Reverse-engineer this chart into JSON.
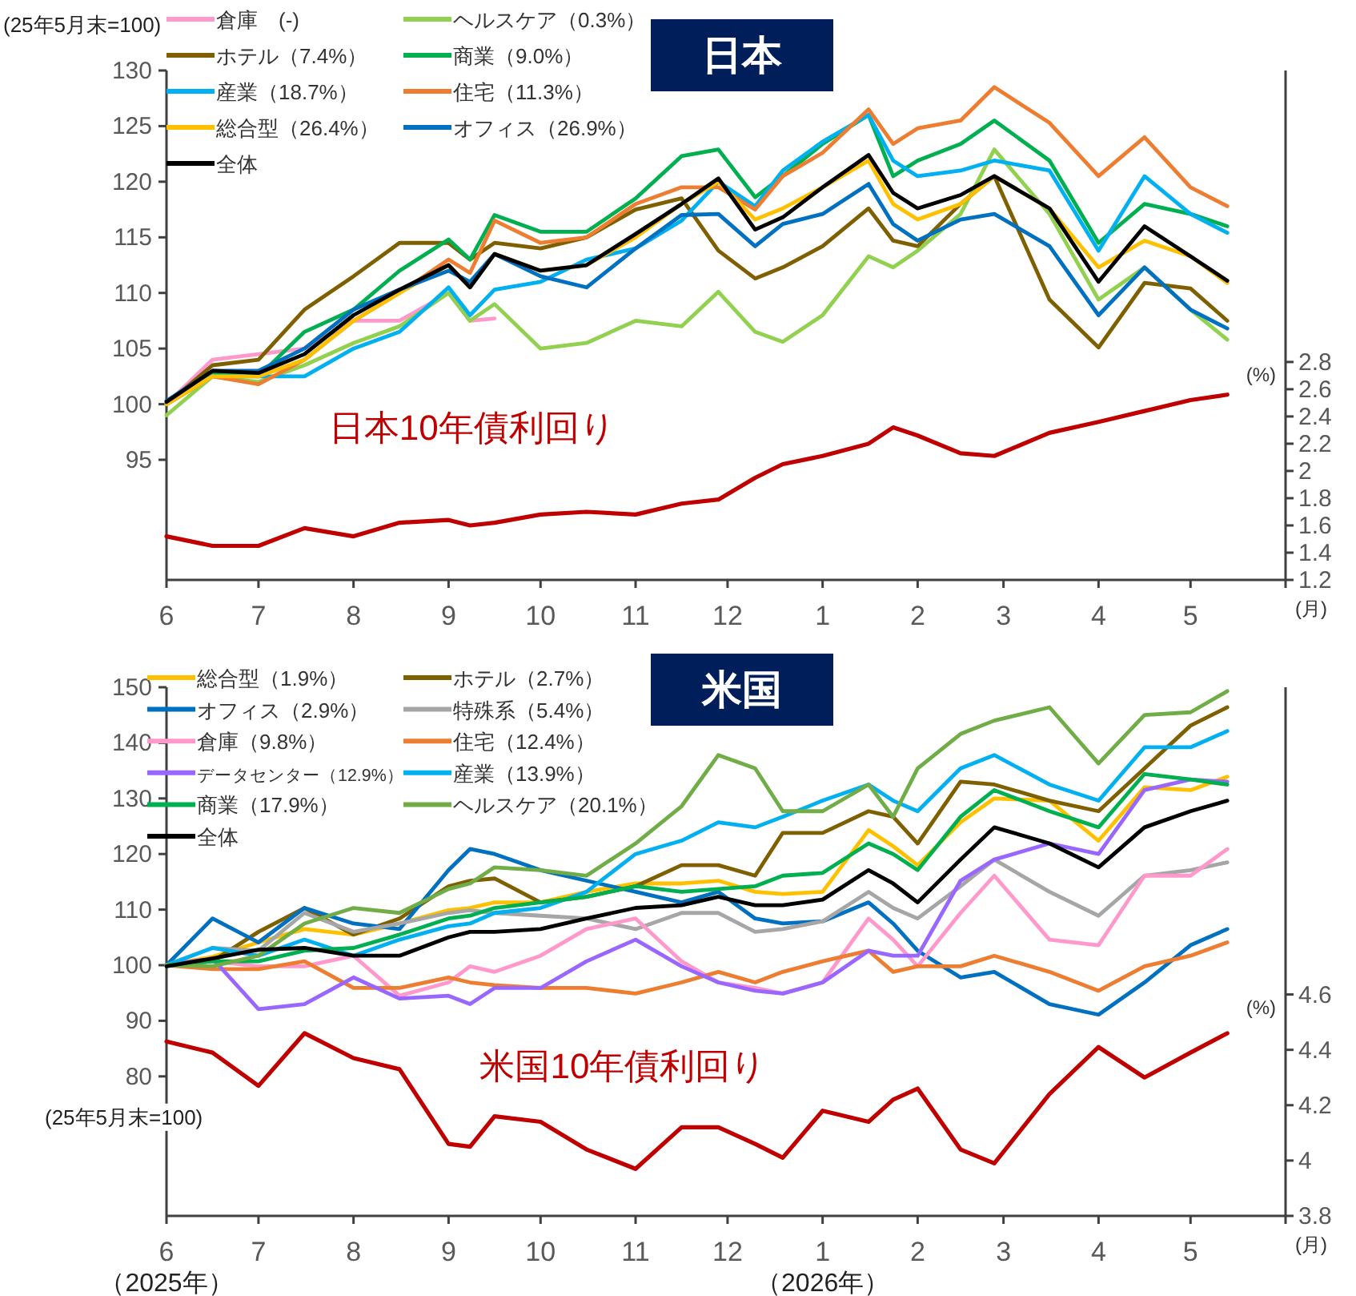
{
  "chart_data": [
    {
      "type": "line",
      "title": "日本",
      "ylabel": "(25年5月末=100)",
      "y2label": "(%)",
      "xlabel": "(月)",
      "legend": "top left",
      "grid": false,
      "marker": "none",
      "line_style": "solid",
      "x": [
        "2025-06-01",
        "2025-06-16",
        "2025-07-01",
        "2025-07-16",
        "2025-08-01",
        "2025-08-16",
        "2025-09-01",
        "2025-09-08",
        "2025-09-16",
        "2025-10-01",
        "2025-10-16",
        "2025-11-01",
        "2025-11-16",
        "2025-11-28",
        "2025-12-10",
        "2025-12-19",
        "2026-01-01",
        "2026-01-16",
        "2026-01-24",
        "2026-02-01",
        "2026-02-15",
        "2026-02-26",
        "2026-03-16",
        "2026-04-01",
        "2026-04-16",
        "2026-05-01",
        "2026-05-13"
      ],
      "xlim": [
        "2025-06-01",
        "2026-06-01"
      ],
      "xticks": [
        {
          "value": "2025-06",
          "label": "6"
        },
        {
          "value": "2025-07",
          "label": "7"
        },
        {
          "value": "2025-08",
          "label": "8"
        },
        {
          "value": "2025-09",
          "label": "9"
        },
        {
          "value": "2025-10",
          "label": "10"
        },
        {
          "value": "2025-11",
          "label": "11"
        },
        {
          "value": "2025-12",
          "label": "12"
        },
        {
          "value": "2026-01",
          "label": "1"
        },
        {
          "value": "2026-02",
          "label": "2"
        },
        {
          "value": "2026-03",
          "label": "3"
        },
        {
          "value": "2026-04",
          "label": "4"
        },
        {
          "value": "2026-05",
          "label": "5"
        }
      ],
      "ylim": [
        84.2,
        130
      ],
      "yticks": [
        95,
        100,
        105,
        110,
        115,
        120,
        125,
        130
      ],
      "y2lim": [
        1.2,
        4.94
      ],
      "y2ticks": [
        1.2,
        1.4,
        1.6,
        1.8,
        2,
        2.2,
        2.4,
        2.6,
        2.8
      ],
      "series": [
        {
          "name": "倉庫　(-)",
          "color": "#ff99cc",
          "values": [
            100,
            104,
            104.5,
            105,
            107.5,
            107.5,
            110,
            107.5,
            107.7,
            null,
            null,
            null,
            null,
            null,
            null,
            null,
            null,
            null,
            null,
            null,
            null,
            null,
            null,
            null,
            null,
            null,
            null
          ]
        },
        {
          "name": "ヘルスケア（0.3%）",
          "color": "#92d050",
          "values": [
            99,
            102.5,
            102,
            103.5,
            105.5,
            107,
            110,
            107.5,
            109,
            105,
            105.5,
            107.5,
            107,
            110.1,
            106.5,
            105.6,
            108,
            113.3,
            112.3,
            113.8,
            117.1,
            122.9,
            117.1,
            109.4,
            112.3,
            108.5,
            105.8
          ]
        },
        {
          "name": "ホテル（7.4%）",
          "color": "#7f6000",
          "values": [
            100,
            103.5,
            104,
            108.5,
            111.5,
            114.5,
            114.5,
            113,
            114.5,
            114,
            115,
            117.5,
            118.5,
            113.8,
            111.3,
            112.3,
            114.2,
            117.6,
            114.7,
            114.2,
            118,
            120.5,
            109.4,
            105.1,
            110.9,
            110.4,
            107.5
          ]
        },
        {
          "name": "商業（9.0%）",
          "color": "#00b050",
          "values": [
            100,
            102.8,
            102.5,
            106.5,
            108.5,
            112,
            114.8,
            113,
            117,
            115.5,
            115.5,
            118.5,
            122.3,
            122.9,
            118.6,
            120.5,
            123.4,
            126,
            120.5,
            121.9,
            123.4,
            125.5,
            121.9,
            114.5,
            118,
            117.1,
            116
          ]
        },
        {
          "name": "産業（18.7%）",
          "color": "#00b0f0",
          "values": [
            100,
            102.5,
            102.5,
            102.5,
            105,
            106.5,
            110.5,
            108,
            110.3,
            111,
            113,
            114,
            116.5,
            120,
            117.8,
            121,
            123.6,
            126,
            121.9,
            120.5,
            121,
            121.9,
            121,
            113.8,
            120.5,
            117.1,
            115.4
          ]
        },
        {
          "name": "住宅（11.3%）",
          "color": "#ed7d31",
          "values": [
            100,
            102.5,
            101.8,
            104,
            107.5,
            110,
            113,
            111.8,
            116.5,
            114.5,
            115,
            118,
            119.5,
            119.5,
            117.5,
            120.5,
            122.6,
            126.5,
            123.4,
            124.8,
            125.5,
            128.5,
            125.3,
            120.5,
            124,
            119.5,
            117.8
          ]
        },
        {
          "name": "総合型（26.4%）",
          "color": "#ffc000",
          "values": [
            100,
            102.5,
            102.5,
            104,
            107.5,
            110,
            112.5,
            110.5,
            113.5,
            112,
            112.5,
            115,
            118,
            120,
            116.6,
            117.6,
            119.5,
            121.9,
            118,
            116.6,
            118,
            120.5,
            117.6,
            112.3,
            114.7,
            113.3,
            110.9
          ]
        },
        {
          "name": "オフィス（26.9%）",
          "color": "#0070c0",
          "values": [
            100.3,
            103,
            103,
            105,
            108.5,
            110.3,
            112,
            111,
            113.5,
            111.5,
            110.5,
            114,
            117,
            117.1,
            114.2,
            116.2,
            117.1,
            119.8,
            116.2,
            114.7,
            116.6,
            117.1,
            114.2,
            108,
            112.3,
            108.5,
            106.8
          ]
        },
        {
          "name": "全体",
          "color": "#000000",
          "values": [
            100.2,
            103,
            102.8,
            104.5,
            108,
            110.3,
            112.5,
            110.5,
            113.5,
            112,
            112.5,
            115.3,
            118,
            120.3,
            115.7,
            116.8,
            119.5,
            122.4,
            119,
            117.6,
            118.8,
            120.5,
            117.6,
            111,
            116,
            113.3,
            111.1
          ]
        },
        {
          "name": "日本10年債利回り",
          "color": "#c00000",
          "axis": "y2",
          "values": [
            1.52,
            1.45,
            1.45,
            1.58,
            1.52,
            1.62,
            1.64,
            1.6,
            1.62,
            1.68,
            1.7,
            1.68,
            1.76,
            1.79,
            1.95,
            2.05,
            2.11,
            2.2,
            2.32,
            2.26,
            2.13,
            2.11,
            2.28,
            2.36,
            2.44,
            2.52,
            2.56
          ]
        }
      ]
    },
    {
      "type": "line",
      "title": "米国",
      "ylabel": "(25年5月末=100)",
      "y2label": "(%)",
      "xlabel": "(月)",
      "legend": "top left",
      "grid": false,
      "marker": "none",
      "line_style": "solid",
      "annotations": [
        "（2025年）",
        "（2026年）"
      ],
      "x": [
        "2025-06-01",
        "2025-06-16",
        "2025-07-01",
        "2025-07-16",
        "2025-08-01",
        "2025-08-16",
        "2025-09-01",
        "2025-09-08",
        "2025-09-16",
        "2025-10-01",
        "2025-10-16",
        "2025-11-01",
        "2025-11-16",
        "2025-11-28",
        "2025-12-10",
        "2025-12-19",
        "2026-01-01",
        "2026-01-16",
        "2026-01-24",
        "2026-02-01",
        "2026-02-15",
        "2026-02-26",
        "2026-03-16",
        "2026-04-01",
        "2026-04-16",
        "2026-05-01",
        "2026-05-13"
      ],
      "xlim": [
        "2025-06-01",
        "2026-06-01"
      ],
      "xticks": [
        {
          "value": "2025-06",
          "label": "6"
        },
        {
          "value": "2025-07",
          "label": "7"
        },
        {
          "value": "2025-08",
          "label": "8"
        },
        {
          "value": "2025-09",
          "label": "9"
        },
        {
          "value": "2025-10",
          "label": "10"
        },
        {
          "value": "2025-11",
          "label": "11"
        },
        {
          "value": "2025-12",
          "label": "12"
        },
        {
          "value": "2026-01",
          "label": "1"
        },
        {
          "value": "2026-02",
          "label": "2"
        },
        {
          "value": "2026-03",
          "label": "3"
        },
        {
          "value": "2026-04",
          "label": "4"
        },
        {
          "value": "2026-05",
          "label": "5"
        }
      ],
      "ylim": [
        54.9,
        150
      ],
      "yticks": [
        80,
        90,
        100,
        110,
        120,
        130,
        140,
        150
      ],
      "y2lim": [
        3.8,
        5.71
      ],
      "y2ticks": [
        3.8,
        4,
        4.2,
        4.4,
        4.6
      ],
      "series": [
        {
          "name": "総合型（1.9%）",
          "color": "#ffc000",
          "values": [
            100,
            101.5,
            104.1,
            106.5,
            105.5,
            107.5,
            109.9,
            110.3,
            111.3,
            111.3,
            113.2,
            114.7,
            114.7,
            115.2,
            113.2,
            112.8,
            113.2,
            124.3,
            121.4,
            118,
            125.7,
            130,
            129.6,
            122.4,
            132,
            131.5,
            133.9
          ]
        },
        {
          "name": "ホテル（2.7%）",
          "color": "#7f6000",
          "values": [
            100,
            100.7,
            106,
            110.3,
            105.5,
            108.4,
            114.2,
            115.2,
            115.6,
            111.3,
            112.3,
            114.2,
            118,
            118,
            116.1,
            123.8,
            123.8,
            127.7,
            126.7,
            121.9,
            133,
            132.5,
            129.6,
            127.7,
            135.4,
            143.1,
            146.4
          ]
        },
        {
          "name": "オフィス（2.9%）",
          "color": "#0070c0",
          "values": [
            100,
            108.4,
            104.1,
            110.3,
            107.5,
            106.5,
            117.1,
            120.9,
            120,
            117.1,
            115.2,
            113.2,
            111.3,
            113.2,
            108.4,
            107.5,
            107.9,
            111.3,
            107.5,
            102.6,
            97.8,
            98.8,
            93,
            91.1,
            96.9,
            103.6,
            106.5
          ]
        },
        {
          "name": "特殊系（5.4%）",
          "color": "#a6a6a6",
          "values": [
            100,
            103.1,
            102.6,
            109.4,
            106,
            107.5,
            109.4,
            109.9,
            109.4,
            108.9,
            108.4,
            106.5,
            109.4,
            109.4,
            106,
            106.5,
            107.9,
            113.2,
            110.3,
            108.4,
            114.2,
            119,
            113.2,
            108.9,
            116.1,
            117.1,
            118.5
          ]
        },
        {
          "name": "倉庫（9.8%）",
          "color": "#ff99cc",
          "values": [
            100,
            100.7,
            99.8,
            99.8,
            101.7,
            94.5,
            96.9,
            99.8,
            98.8,
            101.7,
            106.5,
            108.4,
            100.7,
            96.9,
            95.9,
            94.9,
            96.9,
            108.4,
            104.6,
            99.8,
            109.4,
            116.1,
            104.6,
            103.6,
            116.1,
            116.1,
            120.9
          ]
        },
        {
          "name": "住宅（12.4%）",
          "color": "#ed7d31",
          "values": [
            100,
            99.3,
            99.3,
            100.7,
            95.9,
            95.9,
            97.8,
            96.9,
            96.4,
            95.9,
            95.9,
            94.9,
            96.9,
            98.8,
            96.9,
            98.8,
            100.7,
            102.6,
            98.8,
            99.8,
            99.8,
            101.7,
            98.8,
            95.4,
            99.8,
            101.7,
            104.1
          ]
        },
        {
          "name": "データセンター（12.9%）",
          "color": "#9966ff",
          "values": [
            100,
            101.2,
            92.1,
            93,
            97.8,
            94,
            94.5,
            93,
            95.9,
            95.9,
            100.7,
            104.6,
            99.8,
            96.9,
            95.4,
            94.9,
            96.9,
            102.6,
            101.7,
            101.7,
            115.2,
            119,
            121.9,
            120,
            131.5,
            133.4,
            133
          ]
        },
        {
          "name": "産業（13.9%）",
          "color": "#00b0f0",
          "values": [
            100,
            103.1,
            101.7,
            104.6,
            101.7,
            104.6,
            107,
            107.5,
            109.4,
            110.3,
            113.2,
            120,
            122.4,
            125.7,
            124.8,
            126.7,
            129.6,
            132.5,
            129.6,
            127.7,
            135.4,
            137.8,
            132.5,
            129.6,
            139.2,
            139.2,
            142.1
          ]
        },
        {
          "name": "商業（17.9%）",
          "color": "#00b050",
          "values": [
            100,
            100.7,
            100.7,
            102.6,
            103.1,
            105.5,
            108.4,
            108.9,
            110.3,
            111.3,
            112.3,
            114.2,
            113.2,
            113.7,
            114.2,
            116.1,
            116.6,
            121.9,
            120,
            117.1,
            126.7,
            131.5,
            127.7,
            124.8,
            134.4,
            133.4,
            132.5
          ]
        },
        {
          "name": "ヘルスケア（20.1%）",
          "color": "#70ad47",
          "values": [
            100,
            99.8,
            101.7,
            107.5,
            110.3,
            109.4,
            113.7,
            114.7,
            117.6,
            117.1,
            116.1,
            121.9,
            128.6,
            137.8,
            135.4,
            127.7,
            127.7,
            132.5,
            126.7,
            135.4,
            141.6,
            144,
            146.4,
            136.3,
            145,
            145.5,
            149.3
          ]
        },
        {
          "name": "全体",
          "color": "#000000",
          "values": [
            99.8,
            101.2,
            102.8,
            103.1,
            101.7,
            101.7,
            105,
            106,
            106,
            106.5,
            108.4,
            110.3,
            110.8,
            112.3,
            110.8,
            110.8,
            111.8,
            117.1,
            114.7,
            111.3,
            119,
            124.8,
            121.9,
            117.6,
            124.8,
            127.7,
            129.6
          ]
        },
        {
          "name": "米国10年債利回り",
          "color": "#c00000",
          "axis": "y2",
          "values": [
            4.43,
            4.39,
            4.27,
            4.46,
            4.37,
            4.33,
            4.06,
            4.05,
            4.16,
            4.14,
            4.04,
            3.97,
            4.12,
            4.12,
            4.06,
            4.01,
            4.18,
            4.14,
            4.22,
            4.26,
            4.04,
            3.99,
            4.24,
            4.41,
            4.3,
            4.39,
            4.46
          ]
        }
      ]
    }
  ]
}
